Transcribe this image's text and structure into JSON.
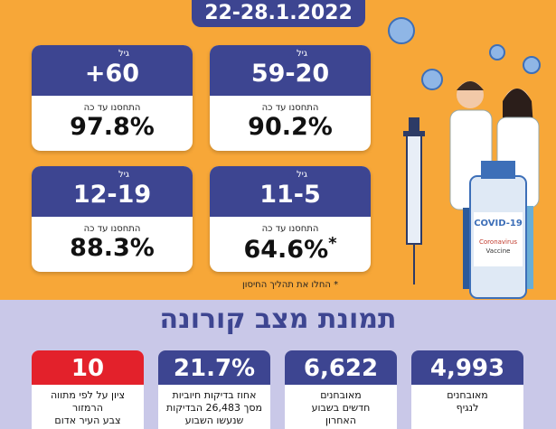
{
  "header": {
    "date": "22-28.1.2022"
  },
  "age_cards": [
    {
      "age_label": "גיל",
      "age": "59-20",
      "vaccinated_label": "התחסנו עד כה",
      "percent": "90.2%"
    },
    {
      "age_label": "גיל",
      "age": "+60",
      "vaccinated_label": "התחסנו עד כה",
      "percent": "97.8%"
    },
    {
      "age_label": "גיל",
      "age": "11-5",
      "vaccinated_label": "התחסנו עד כה",
      "percent": "64.6%",
      "footnote_mark": "*"
    },
    {
      "age_label": "גיל",
      "age": "12-19",
      "vaccinated_label": "התחסנו עד כה",
      "percent": "88.3%"
    }
  ],
  "footnote": "* החלו את תהליך החיסון",
  "illustration": {
    "vial_title": "COVID-19",
    "vial_text": [
      "Coronavirus",
      "Vaccine"
    ]
  },
  "status": {
    "title": "תמונת מצב קורונה",
    "cards": [
      {
        "value": "4,993",
        "lines": [
          "מאובחנים",
          "לנגיף"
        ]
      },
      {
        "value": "6,622",
        "lines": [
          "מאובחנים",
          "חדשים בשבוע",
          "האחרון"
        ]
      },
      {
        "value": "21.7%",
        "lines": [
          "אחוז בדיקות חיוביות",
          "מסך 26,483 הבדיקות",
          "שנעשו השבוע"
        ]
      },
      {
        "value": "10",
        "lines": [
          "ציון על לפי מתווה",
          "הרמזור",
          "צבע העיר אדום"
        ]
      }
    ]
  }
}
